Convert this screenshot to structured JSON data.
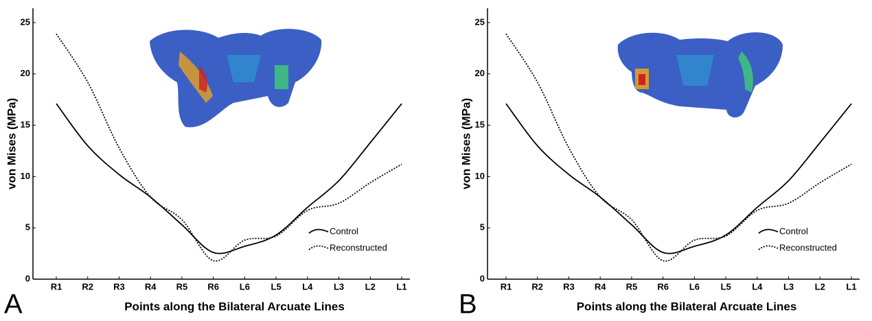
{
  "chart_data": [
    {
      "type": "line",
      "panel_label": "A",
      "x_label": "Points along the Bilateral Arcuate Lines",
      "y_label": "von Mises (MPa)",
      "categories": [
        "R1",
        "R2",
        "R3",
        "R4",
        "R5",
        "R6",
        "L6",
        "L5",
        "L4",
        "L3",
        "L2",
        "L1"
      ],
      "series": [
        {
          "name": "Control",
          "color": "#000000",
          "style": "solid",
          "values": [
            17.1,
            13.0,
            10.2,
            8.0,
            5.3,
            2.6,
            3.2,
            4.3,
            7.0,
            9.6,
            13.3,
            17.1
          ]
        },
        {
          "name": "Reconstructed",
          "color": "#000000",
          "style": "dotted",
          "values": [
            23.9,
            19.2,
            12.8,
            8.0,
            5.8,
            1.8,
            3.8,
            4.2,
            6.7,
            7.4,
            9.4,
            11.2
          ]
        }
      ],
      "ylim": [
        0,
        26.4
      ],
      "yticks": [
        0,
        5,
        10,
        15,
        20,
        25
      ],
      "grid": false,
      "legend": "lower-right"
    },
    {
      "type": "line",
      "panel_label": "B",
      "x_label": "Points along the Bilateral Arcuate Lines",
      "y_label": "von Mises (MPa)",
      "categories": [
        "R1",
        "R2",
        "R3",
        "R4",
        "R5",
        "R6",
        "L6",
        "L5",
        "L4",
        "L3",
        "L2",
        "L1"
      ],
      "series": [
        {
          "name": "Control",
          "color": "#000000",
          "style": "solid",
          "values": [
            17.1,
            13.0,
            10.2,
            8.0,
            5.3,
            2.6,
            3.2,
            4.3,
            7.0,
            9.6,
            13.3,
            17.1
          ]
        },
        {
          "name": "Reconstructed",
          "color": "#000000",
          "style": "dotted",
          "values": [
            23.9,
            19.2,
            12.8,
            8.0,
            5.8,
            1.8,
            3.8,
            4.2,
            6.7,
            7.4,
            9.4,
            11.2
          ]
        }
      ],
      "ylim": [
        0,
        26.4
      ],
      "yticks": [
        0,
        5,
        10,
        15,
        20,
        25
      ],
      "grid": false,
      "legend": "lower-right"
    }
  ]
}
